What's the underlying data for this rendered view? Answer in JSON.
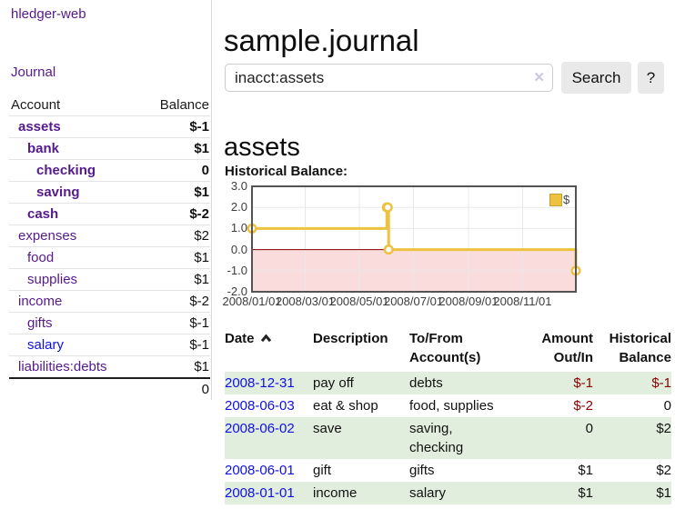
{
  "app": {
    "brand": "hledger-web",
    "nav": {
      "journal": "Journal"
    }
  },
  "sidebar": {
    "headers": {
      "account": "Account",
      "balance": "Balance"
    },
    "accounts": [
      {
        "name": "assets",
        "balance": "$-1"
      },
      {
        "name": "bank",
        "balance": "$1"
      },
      {
        "name": "checking",
        "balance": "0"
      },
      {
        "name": "saving",
        "balance": "$1"
      },
      {
        "name": "cash",
        "balance": "$-2"
      },
      {
        "name": "expenses",
        "balance": "$2"
      },
      {
        "name": "food",
        "balance": "$1"
      },
      {
        "name": "supplies",
        "balance": "$1"
      },
      {
        "name": "income",
        "balance": "$-2"
      },
      {
        "name": "gifts",
        "balance": "$-1"
      },
      {
        "name": "salary",
        "balance": "$-1"
      },
      {
        "name": "liabilities:debts",
        "balance": "$1"
      }
    ],
    "total": "0"
  },
  "main": {
    "title": "sample.journal",
    "search": {
      "value": "inacct:assets",
      "clear_icon": "✕",
      "search_button": "Search",
      "help_button": "?"
    },
    "account_heading": "assets",
    "section_label": "Historical Balance:"
  },
  "chart_data": {
    "type": "line",
    "style": "step",
    "title": "Historical Balance",
    "series": [
      {
        "name": "$",
        "points": [
          {
            "date": "2008-01-01",
            "value": 1
          },
          {
            "date": "2008-06-01",
            "value": 2
          },
          {
            "date": "2008-06-02",
            "value": 2
          },
          {
            "date": "2008-06-03",
            "value": 0
          },
          {
            "date": "2008-12-31",
            "value": -1
          }
        ]
      }
    ],
    "x_range": [
      "2008-01-01",
      "2008-12-31"
    ],
    "x_ticks": [
      "2008/01/01",
      "2008/03/01",
      "2008/05/01",
      "2008/07/01",
      "2008/09/01",
      "2008/11/01"
    ],
    "y_ticks": [
      3.0,
      2.0,
      1.0,
      0.0,
      -1.0,
      -2.0
    ],
    "ylim": [
      -2,
      3
    ],
    "grid": true,
    "legend": {
      "label": "$",
      "position": "top-right"
    },
    "colors": {
      "line": "#edc240",
      "marker_fill": "#ffffff",
      "negative_region": "#fbdcdc",
      "zero_line": "#8b0000",
      "plot_border": "#545454",
      "gridline": "#e8e8e8"
    }
  },
  "register": {
    "headers": {
      "date": "Date",
      "description": "Description",
      "tofrom": "To/From Account(s)",
      "amount": "Amount Out/In",
      "balance": "Historical Balance"
    },
    "rows": [
      {
        "date": "2008-12-31",
        "description": "pay off",
        "tofrom": "debts",
        "amount": "$-1",
        "balance": "$-1"
      },
      {
        "date": "2008-06-03",
        "description": "eat & shop",
        "tofrom": "food, supplies",
        "amount": "$-2",
        "balance": "0"
      },
      {
        "date": "2008-06-02",
        "description": "save",
        "tofrom": "saving, checking",
        "amount": "0",
        "balance": "$2"
      },
      {
        "date": "2008-06-01",
        "description": "gift",
        "tofrom": "gifts",
        "amount": "$1",
        "balance": "$2"
      },
      {
        "date": "2008-01-01",
        "description": "income",
        "tofrom": "salary",
        "amount": "$1",
        "balance": "$1"
      }
    ]
  }
}
